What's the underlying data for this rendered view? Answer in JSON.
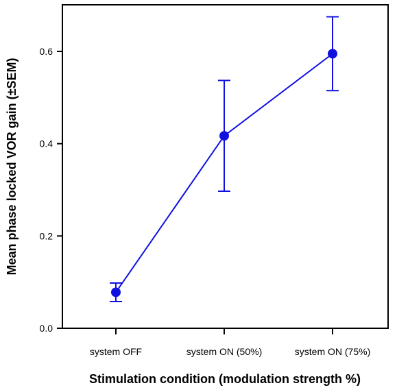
{
  "chart_data": {
    "type": "line",
    "title": "",
    "xlabel": "Stimulation condition (modulation strength %)",
    "ylabel": "Mean phase locked VOR gain (±SEM)",
    "categories": [
      "system OFF",
      "system ON (50%)",
      "system ON (75%)"
    ],
    "series": [
      {
        "values": [
          0.078,
          0.417,
          0.595
        ],
        "error_low": [
          0.058,
          0.297,
          0.515
        ],
        "error_high": [
          0.098,
          0.537,
          0.675
        ],
        "color": "#1010e0"
      }
    ],
    "ylim": [
      0.0,
      0.7
    ],
    "yticks": [
      0.0,
      0.2,
      0.4,
      0.6
    ],
    "ytick_labels": [
      "0.0",
      "0.2",
      "0.4",
      "0.6"
    ],
    "grid": false,
    "legend": "none"
  }
}
